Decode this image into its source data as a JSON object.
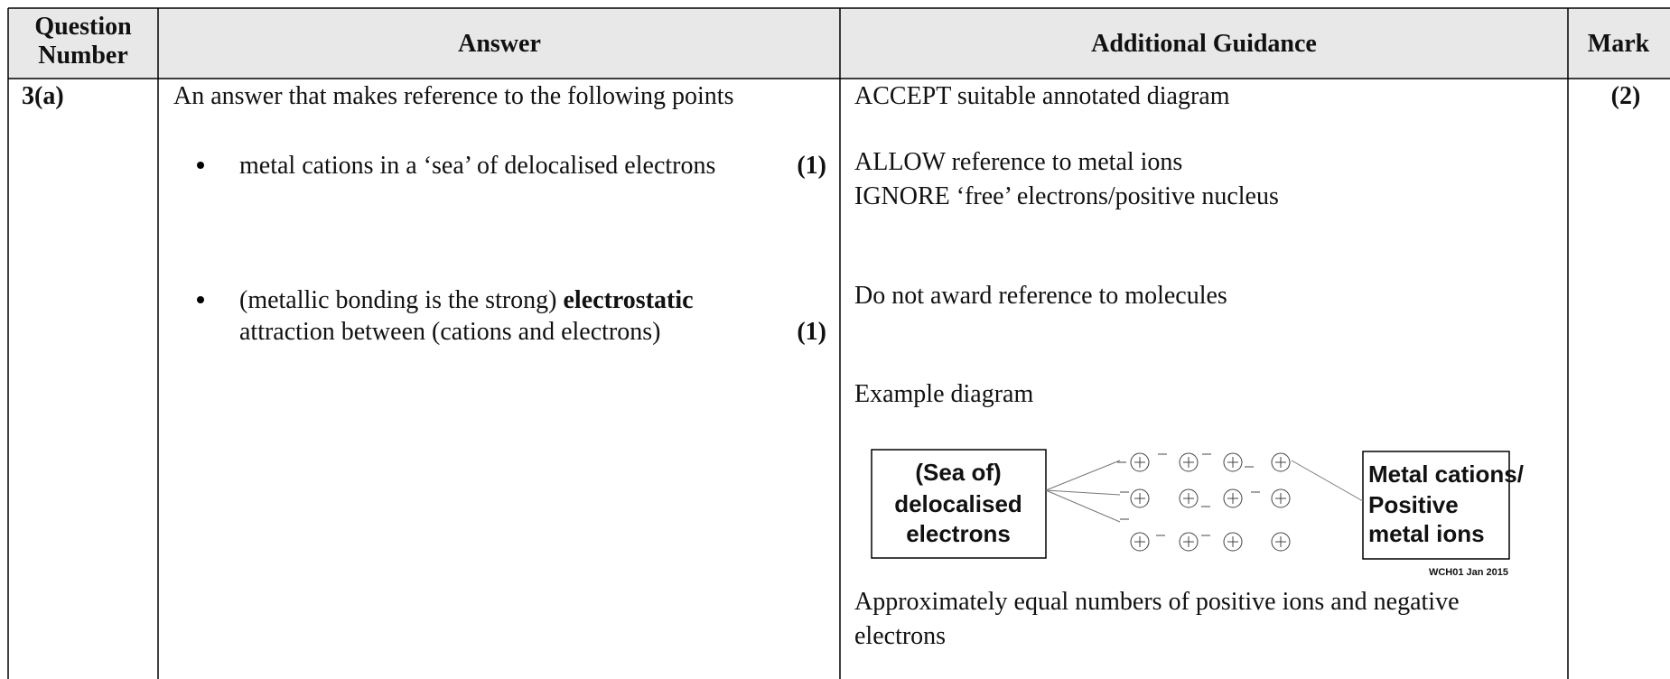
{
  "header": {
    "columns": [
      "Question Number",
      "Answer",
      "Additional Guidance",
      "Mark"
    ]
  },
  "row": {
    "question": "3(a)",
    "answer": {
      "intro": "An answer that makes reference to the following points",
      "bullets": [
        {
          "parts": [
            {
              "text": "metal cations in a ‘sea’ of delocalised electrons",
              "bold": false
            }
          ],
          "mark": "(1)"
        },
        {
          "parts": [
            {
              "text": "(metallic bonding is the strong)",
              "bold": false
            },
            {
              "text": "electrostatic",
              "bold": true
            },
            {
              "text": "attraction between (cations and electrons)",
              "bold": false
            }
          ],
          "mark": "(1)"
        }
      ]
    },
    "guidance": {
      "lines": [
        "ACCEPT suitable annotated diagram",
        "ALLOW reference to metal ions",
        "IGNORE ‘free’ electrons/positive nucleus",
        "Do not award reference to molecules",
        "Example diagram",
        "Approximately equal numbers of positive ions and negative",
        "electrons"
      ],
      "diagram": {
        "left_label": [
          "(Sea of)",
          "delocalised",
          "electrons"
        ],
        "right_label": [
          "Metal cations/",
          "Positive",
          "metal ions"
        ],
        "source": "WCH01 Jan 2015"
      }
    },
    "mark": "(2)"
  }
}
